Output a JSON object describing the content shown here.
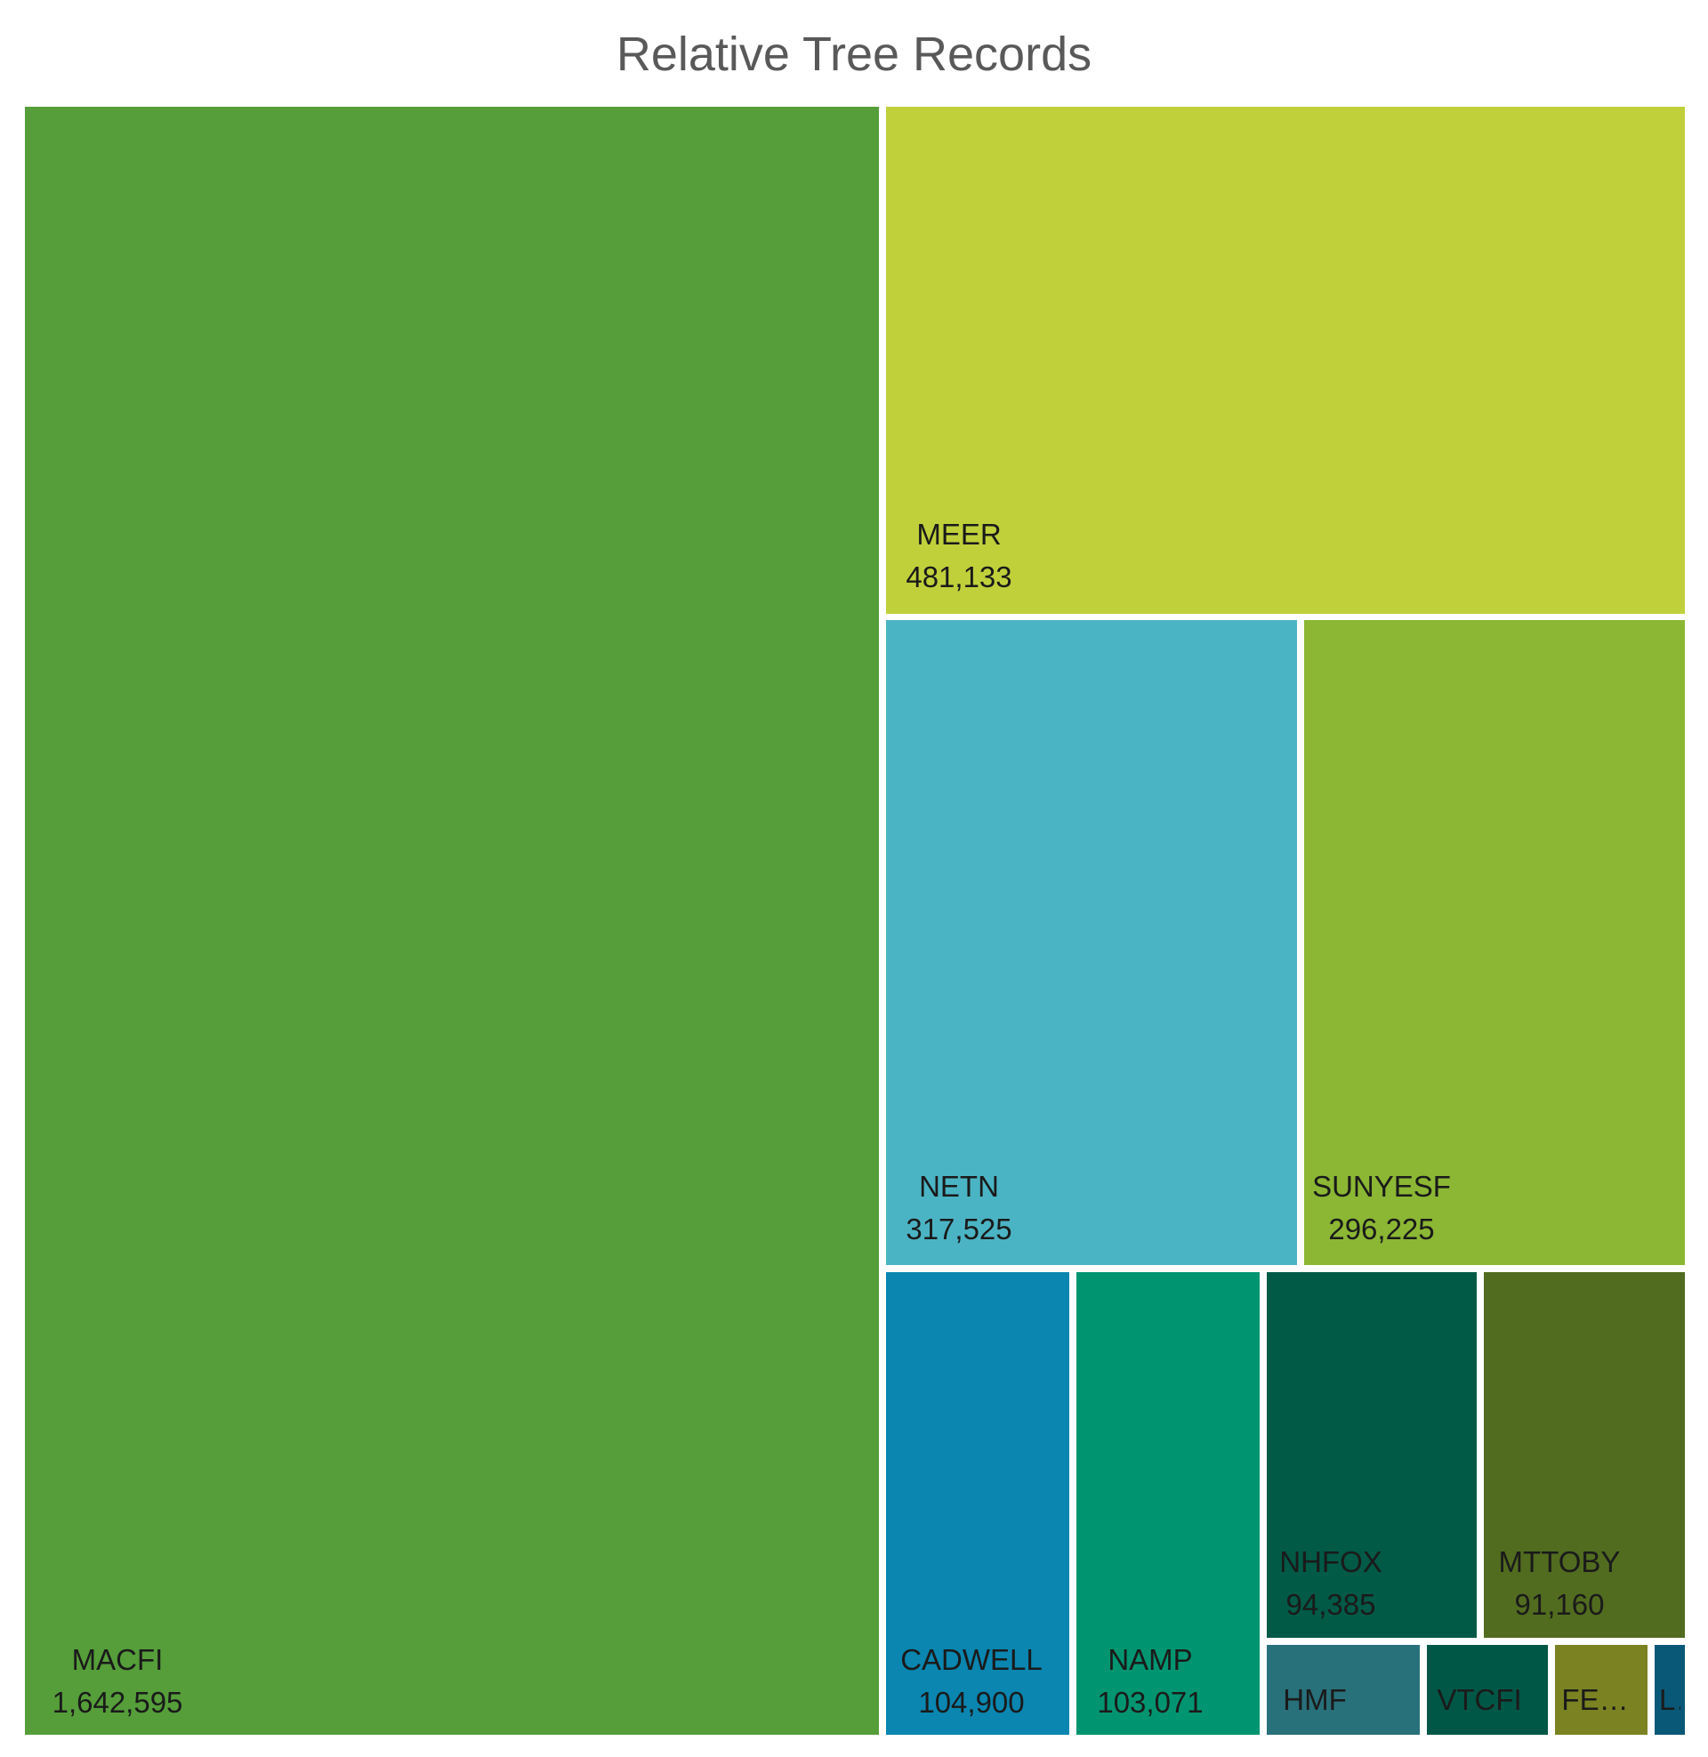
{
  "chart_data": {
    "type": "treemap",
    "title": "Relative Tree Records",
    "items": [
      {
        "name": "MACFI",
        "value": 1642595,
        "value_label": "1,642,595",
        "color": "#559E3A"
      },
      {
        "name": "MEER",
        "value": 481133,
        "value_label": "481,133",
        "color": "#C0D03B"
      },
      {
        "name": "NETN",
        "value": 317525,
        "value_label": "317,525",
        "color": "#4BB4C4"
      },
      {
        "name": "SUNYESF",
        "value": 296225,
        "value_label": "296,225",
        "color": "#8BB734"
      },
      {
        "name": "CADWELL",
        "value": 104900,
        "value_label": "104,900",
        "color": "#0A86B0"
      },
      {
        "name": "NAMP",
        "value": 103071,
        "value_label": "103,071",
        "color": "#009570"
      },
      {
        "name": "NHFOX",
        "value": 94385,
        "value_label": "94,385",
        "color": "#005A46"
      },
      {
        "name": "MTTOBY",
        "value": 91160,
        "value_label": "91,160",
        "color": "#516C1F"
      },
      {
        "name": "HMF",
        "value": null,
        "value_label": "",
        "color": "#28707A",
        "display_name": "HMF"
      },
      {
        "name": "VTCFI",
        "value": null,
        "value_label": "",
        "color": "#005746",
        "display_name": "VTCFI"
      },
      {
        "name": "FE…",
        "value": null,
        "value_label": "",
        "color": "#7A8222",
        "display_name": "FE…"
      },
      {
        "name": "L…",
        "value": null,
        "value_label": "",
        "color": "#0A5878",
        "display_name": "L…"
      }
    ]
  }
}
